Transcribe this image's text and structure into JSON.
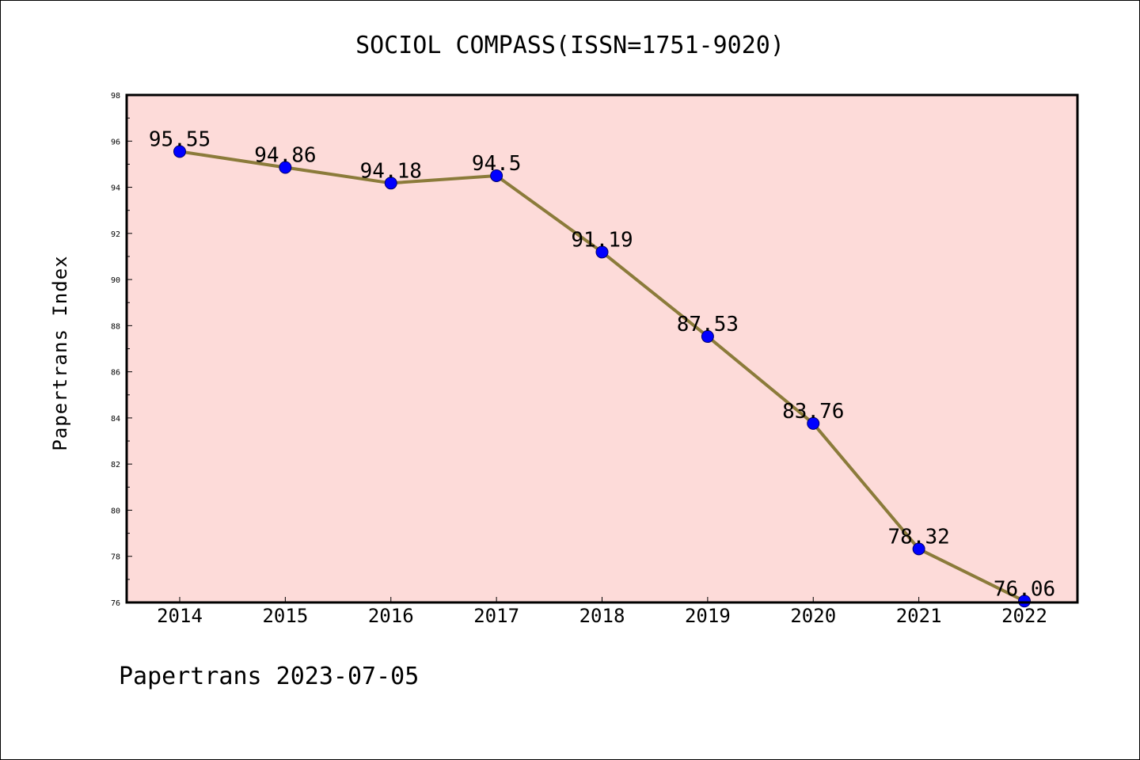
{
  "title": "SOCIOL COMPASS(ISSN=1751-9020)",
  "ylabel": "Papertrans Index",
  "footer": "Papertrans 2023-07-05",
  "colors": {
    "plot_background": "#fddbd9",
    "line": "#8b7b3a",
    "marker": "#0000ff",
    "axis": "#000000"
  },
  "chart_data": {
    "type": "line",
    "title": "SOCIOL COMPASS(ISSN=1751-9020)",
    "xlabel": "",
    "ylabel": "Papertrans Index",
    "ylim": [
      76,
      98
    ],
    "yticks": [
      76,
      78,
      80,
      82,
      84,
      86,
      88,
      90,
      92,
      94,
      96,
      98
    ],
    "x": [
      "2014",
      "2015",
      "2016",
      "2017",
      "2018",
      "2019",
      "2020",
      "2021",
      "2022"
    ],
    "values": [
      95.55,
      94.86,
      94.18,
      94.5,
      91.19,
      87.53,
      83.76,
      78.32,
      76.06
    ],
    "value_labels": [
      "95.55",
      "94.86",
      "94.18",
      "94.5",
      "91.19",
      "87.53",
      "83.76",
      "78.32",
      "76.06"
    ],
    "grid": false,
    "legend": "none"
  }
}
